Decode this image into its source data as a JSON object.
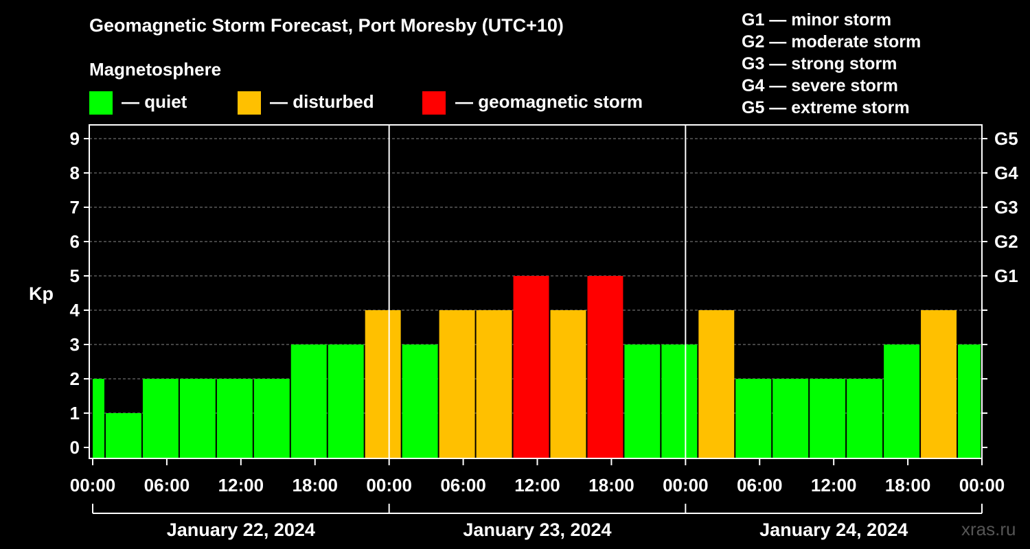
{
  "title": "Geomagnetic Storm Forecast, Port Moresby (UTC+10)",
  "legend": {
    "heading": "Magnetosphere",
    "items": [
      {
        "label": "— quiet",
        "color": "#00ff00"
      },
      {
        "label": "— disturbed",
        "color": "#ffc000"
      },
      {
        "label": "— geomagnetic storm",
        "color": "#ff0000"
      }
    ]
  },
  "g_scale": [
    {
      "label": "G1 — minor storm"
    },
    {
      "label": "G2 — moderate storm"
    },
    {
      "label": "G3 — strong storm"
    },
    {
      "label": "G4 — severe storm"
    },
    {
      "label": "G5 — extreme storm"
    }
  ],
  "watermark": "xras.ru",
  "chart_data": {
    "type": "bar",
    "title": "Geomagnetic Storm Forecast, Port Moresby (UTC+10)",
    "ylabel": "Kp",
    "ylim": [
      0,
      9
    ],
    "yticks": [
      0,
      1,
      2,
      3,
      4,
      5,
      6,
      7,
      8,
      9
    ],
    "right_axis_labels": [
      {
        "kp": 5,
        "label": "G1"
      },
      {
        "kp": 6,
        "label": "G2"
      },
      {
        "kp": 7,
        "label": "G3"
      },
      {
        "kp": 8,
        "label": "G4"
      },
      {
        "kp": 9,
        "label": "G5"
      }
    ],
    "x_start_hour": 0,
    "x_end_hour": 72,
    "xtick_labels": [
      "00:00",
      "06:00",
      "12:00",
      "18:00",
      "00:00",
      "06:00",
      "12:00",
      "18:00",
      "00:00",
      "06:00",
      "12:00",
      "18:00",
      "00:00"
    ],
    "day_labels": [
      "January 22, 2024",
      "January 23, 2024",
      "January 24, 2024"
    ],
    "bars": [
      {
        "start_hour": 0,
        "end_hour": 1,
        "kp": 2,
        "level": "quiet"
      },
      {
        "start_hour": 1,
        "end_hour": 4,
        "kp": 1,
        "level": "quiet"
      },
      {
        "start_hour": 4,
        "end_hour": 7,
        "kp": 2,
        "level": "quiet"
      },
      {
        "start_hour": 7,
        "end_hour": 10,
        "kp": 2,
        "level": "quiet"
      },
      {
        "start_hour": 10,
        "end_hour": 13,
        "kp": 2,
        "level": "quiet"
      },
      {
        "start_hour": 13,
        "end_hour": 16,
        "kp": 2,
        "level": "quiet"
      },
      {
        "start_hour": 16,
        "end_hour": 19,
        "kp": 3,
        "level": "quiet"
      },
      {
        "start_hour": 19,
        "end_hour": 22,
        "kp": 3,
        "level": "quiet"
      },
      {
        "start_hour": 22,
        "end_hour": 25,
        "kp": 4,
        "level": "disturbed"
      },
      {
        "start_hour": 25,
        "end_hour": 28,
        "kp": 3,
        "level": "quiet"
      },
      {
        "start_hour": 28,
        "end_hour": 31,
        "kp": 4,
        "level": "disturbed"
      },
      {
        "start_hour": 31,
        "end_hour": 34,
        "kp": 4,
        "level": "disturbed"
      },
      {
        "start_hour": 34,
        "end_hour": 37,
        "kp": 5,
        "level": "storm"
      },
      {
        "start_hour": 37,
        "end_hour": 40,
        "kp": 4,
        "level": "disturbed"
      },
      {
        "start_hour": 40,
        "end_hour": 43,
        "kp": 5,
        "level": "storm"
      },
      {
        "start_hour": 43,
        "end_hour": 46,
        "kp": 3,
        "level": "quiet"
      },
      {
        "start_hour": 46,
        "end_hour": 49,
        "kp": 3,
        "level": "quiet"
      },
      {
        "start_hour": 49,
        "end_hour": 52,
        "kp": 4,
        "level": "disturbed"
      },
      {
        "start_hour": 52,
        "end_hour": 55,
        "kp": 2,
        "level": "quiet"
      },
      {
        "start_hour": 55,
        "end_hour": 58,
        "kp": 2,
        "level": "quiet"
      },
      {
        "start_hour": 58,
        "end_hour": 61,
        "kp": 2,
        "level": "quiet"
      },
      {
        "start_hour": 61,
        "end_hour": 64,
        "kp": 2,
        "level": "quiet"
      },
      {
        "start_hour": 64,
        "end_hour": 67,
        "kp": 3,
        "level": "quiet"
      },
      {
        "start_hour": 67,
        "end_hour": 70,
        "kp": 4,
        "level": "disturbed"
      },
      {
        "start_hour": 70,
        "end_hour": 72,
        "kp": 3,
        "level": "quiet"
      }
    ],
    "colors": {
      "quiet": "#00ff00",
      "disturbed": "#ffc000",
      "storm": "#ff0000"
    },
    "grid": "dashed"
  }
}
